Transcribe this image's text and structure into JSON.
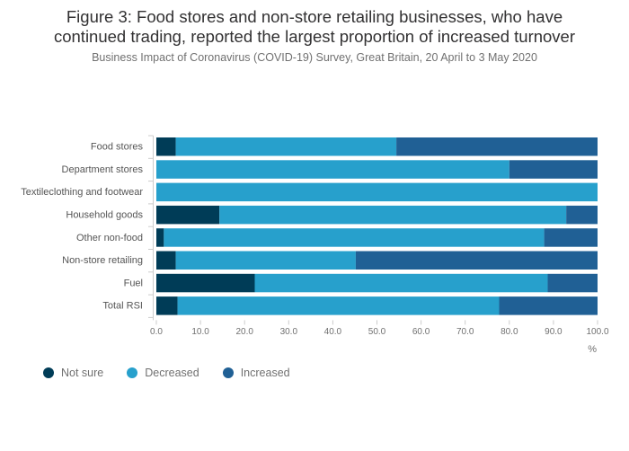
{
  "chart_data": {
    "type": "bar",
    "orientation": "horizontal",
    "stacked": true,
    "title": "Figure 3: Food stores and non-store retailing businesses, who have continued trading, reported the largest proportion of increased turnover",
    "title_lines": [
      "Figure 3: Food stores and non-store retailing businesses, who have",
      "continued trading, reported the largest proportion of increased turnover"
    ],
    "subtitle": "Business Impact of Coronavirus (COVID-19) Survey, Great Britain, 20 April to 3 May 2020",
    "categories": [
      "Food stores",
      "Department stores",
      "Textileclothing and footwear",
      "Household goods",
      "Other non-food",
      "Non-store retailing",
      "Fuel",
      "Total RSI"
    ],
    "series": [
      {
        "name": "Not sure",
        "color": "#003c57",
        "values": [
          4.4,
          0.0,
          0.0,
          14.3,
          1.7,
          4.4,
          22.3,
          4.8
        ]
      },
      {
        "name": "Decreased",
        "color": "#27a0cc",
        "values": [
          50.0,
          80.0,
          100.0,
          78.6,
          86.2,
          40.8,
          66.4,
          72.9
        ]
      },
      {
        "name": "Increased",
        "color": "#206095",
        "values": [
          45.6,
          20.0,
          0.0,
          7.1,
          12.1,
          54.8,
          11.3,
          22.3
        ]
      }
    ],
    "xlim": [
      0,
      100
    ],
    "xticks": [
      "0.0",
      "10.0",
      "20.0",
      "30.0",
      "40.0",
      "50.0",
      "60.0",
      "70.0",
      "80.0",
      "90.0",
      "100.0"
    ],
    "xlabel": "%",
    "ylabel": "",
    "grid": false,
    "legend_position": "bottom-left"
  }
}
